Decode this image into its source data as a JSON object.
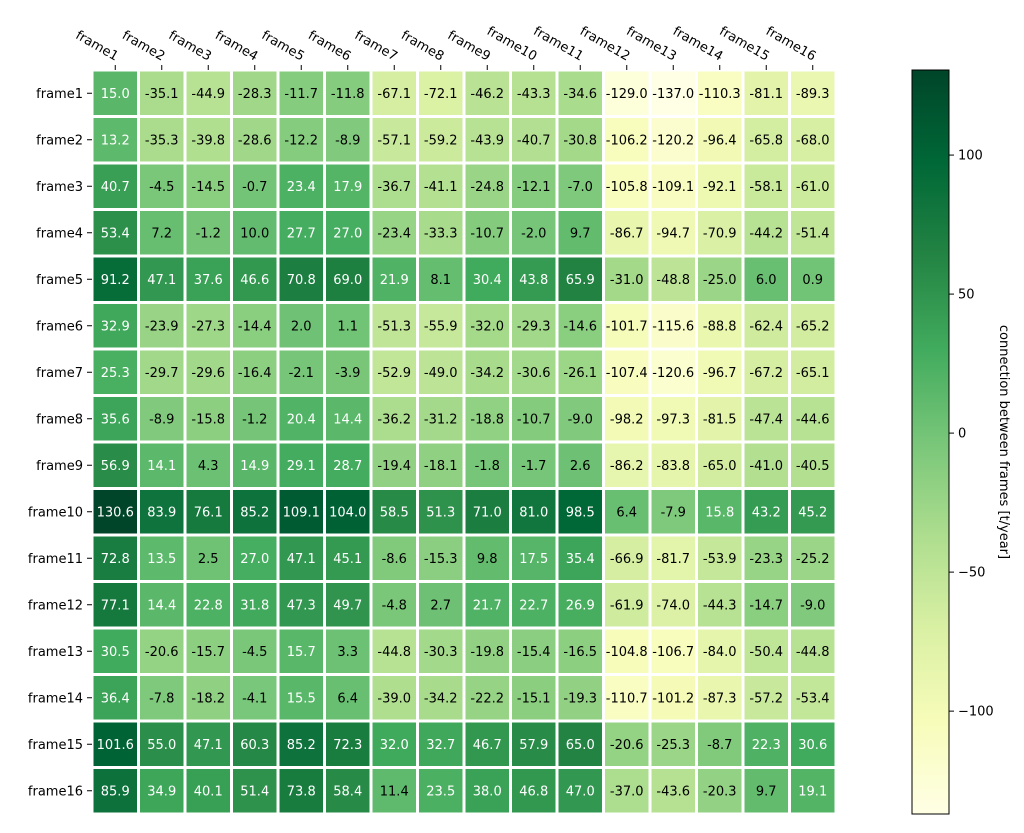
{
  "chart_data": {
    "type": "heatmap",
    "title": "",
    "xlabel": "",
    "ylabel": "",
    "x_labels": [
      "frame1",
      "frame2",
      "frame3",
      "frame4",
      "frame5",
      "frame6",
      "frame7",
      "frame8",
      "frame9",
      "frame10",
      "frame11",
      "frame12",
      "frame13",
      "frame14",
      "frame15",
      "frame16"
    ],
    "y_labels": [
      "frame1",
      "frame2",
      "frame3",
      "frame4",
      "frame5",
      "frame6",
      "frame7",
      "frame8",
      "frame9",
      "frame10",
      "frame11",
      "frame12",
      "frame13",
      "frame14",
      "frame15",
      "frame16"
    ],
    "values": [
      [
        15.0,
        -35.1,
        -44.9,
        -28.3,
        -11.7,
        -11.8,
        -67.1,
        -72.1,
        -46.2,
        -43.3,
        -34.6,
        -129.0,
        -137.0,
        -110.3,
        -81.1,
        -89.3
      ],
      [
        13.2,
        -35.3,
        -39.8,
        -28.6,
        -12.2,
        -8.9,
        -57.1,
        -59.2,
        -43.9,
        -40.7,
        -30.8,
        -106.2,
        -120.2,
        -96.4,
        -65.8,
        -68.0
      ],
      [
        40.7,
        -4.5,
        -14.5,
        -0.7,
        23.4,
        17.9,
        -36.7,
        -41.1,
        -24.8,
        -12.1,
        -7.0,
        -105.8,
        -109.1,
        -92.1,
        -58.1,
        -61.0
      ],
      [
        53.4,
        7.2,
        -1.2,
        10.0,
        27.7,
        27.0,
        -23.4,
        -33.3,
        -10.7,
        -2.0,
        9.7,
        -86.7,
        -94.7,
        -70.9,
        -44.2,
        -51.4
      ],
      [
        91.2,
        47.1,
        37.6,
        46.6,
        70.8,
        69.0,
        21.9,
        8.1,
        30.4,
        43.8,
        65.9,
        -31.0,
        -48.8,
        -25.0,
        6.0,
        0.9
      ],
      [
        32.9,
        -23.9,
        -27.3,
        -14.4,
        2.0,
        1.1,
        -51.3,
        -55.9,
        -32.0,
        -29.3,
        -14.6,
        -101.7,
        -115.6,
        -88.8,
        -62.4,
        -65.2
      ],
      [
        25.3,
        -29.7,
        -29.6,
        -16.4,
        -2.1,
        -3.9,
        -52.9,
        -49.0,
        -34.2,
        -30.6,
        -26.1,
        -107.4,
        -120.6,
        -96.7,
        -67.2,
        -65.1
      ],
      [
        35.6,
        -8.9,
        -15.8,
        -1.2,
        20.4,
        14.4,
        -36.2,
        -31.2,
        -18.8,
        -10.7,
        -9.0,
        -98.2,
        -97.3,
        -81.5,
        -47.4,
        -44.6
      ],
      [
        56.9,
        14.1,
        4.3,
        14.9,
        29.1,
        28.7,
        -19.4,
        -18.1,
        -1.8,
        -1.7,
        2.6,
        -86.2,
        -83.8,
        -65.0,
        -41.0,
        -40.5
      ],
      [
        130.6,
        83.9,
        76.1,
        85.2,
        109.1,
        104.0,
        58.5,
        51.3,
        71.0,
        81.0,
        98.5,
        6.4,
        -7.9,
        15.8,
        43.2,
        45.2
      ],
      [
        72.8,
        13.5,
        2.5,
        27.0,
        47.1,
        45.1,
        -8.6,
        -15.3,
        9.8,
        17.5,
        35.4,
        -66.9,
        -81.7,
        -53.9,
        -23.3,
        -25.2
      ],
      [
        77.1,
        14.4,
        22.8,
        31.8,
        47.3,
        49.7,
        -4.8,
        2.7,
        21.7,
        22.7,
        26.9,
        -61.9,
        -74.0,
        -44.3,
        -14.7,
        -9.0
      ],
      [
        30.5,
        -20.6,
        -15.7,
        -4.5,
        15.7,
        3.3,
        -44.8,
        -30.3,
        -19.8,
        -15.4,
        -16.5,
        -104.8,
        -106.7,
        -84.0,
        -50.4,
        -44.8
      ],
      [
        36.4,
        -7.8,
        -18.2,
        -4.1,
        15.5,
        6.4,
        -39.0,
        -34.2,
        -22.2,
        -15.1,
        -19.3,
        -110.7,
        -101.2,
        -87.3,
        -57.2,
        -53.4
      ],
      [
        101.6,
        55.0,
        47.1,
        60.3,
        85.2,
        72.3,
        32.0,
        32.7,
        46.7,
        57.9,
        65.0,
        -20.6,
        -25.3,
        -8.7,
        22.3,
        30.6
      ],
      [
        85.9,
        34.9,
        40.1,
        51.4,
        73.8,
        58.4,
        11.4,
        23.5,
        38.0,
        46.8,
        47.0,
        -37.0,
        -43.6,
        -20.3,
        9.7,
        19.1
      ]
    ],
    "vmin": -137.0,
    "vmax": 130.6,
    "colormap": "YlGn",
    "colormap_stops": [
      "#ffffe5",
      "#f7fcb9",
      "#d9f0a3",
      "#addd8e",
      "#78c679",
      "#41ab5d",
      "#238443",
      "#006837",
      "#004529"
    ],
    "colorbar": {
      "label": "connection between frames [t/year]",
      "ticks": [
        100,
        50,
        0,
        -50,
        -100
      ],
      "tick_labels": [
        "100",
        "50",
        "0",
        "−50",
        "−100"
      ]
    },
    "grid": false,
    "cell_border_color": "#ffffff",
    "text_color_light": "#ffffff",
    "text_color_dark": "#000000"
  }
}
